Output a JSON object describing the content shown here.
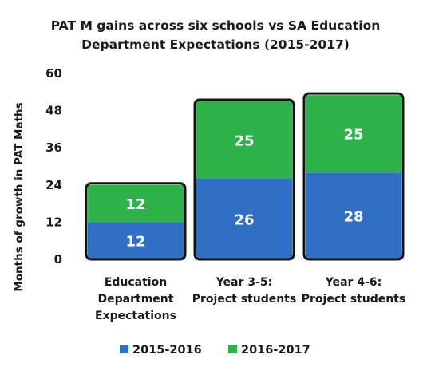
{
  "chart_data": {
    "type": "bar",
    "stacked": true,
    "title": "PAT M gains across six schools vs SA Education Department Expectations (2015-2017)",
    "title_lines": [
      "PAT M gains across six schools vs SA Education",
      "Department Expectations (2015-2017)"
    ],
    "ylabel": "Months of growth in PAT Maths",
    "xlabel": "",
    "ylim": [
      0,
      60
    ],
    "yticks": [
      0,
      12,
      24,
      36,
      48,
      60
    ],
    "categories": [
      "Education Department Expectations",
      "Year 3-5: Project students",
      "Year 4-6: Project students"
    ],
    "category_lines": [
      [
        "Education",
        "Department",
        "Expectations"
      ],
      [
        "Year 3-5:",
        "Project students"
      ],
      [
        "Year 4-6:",
        "Project students"
      ]
    ],
    "series": [
      {
        "name": "2015-2016",
        "color": "#2f6fc4",
        "values": [
          12,
          26,
          28
        ]
      },
      {
        "name": "2016-2017",
        "color": "#2fb24a",
        "values": [
          12,
          25,
          25
        ]
      }
    ],
    "grid": false,
    "legend_position": "bottom"
  }
}
